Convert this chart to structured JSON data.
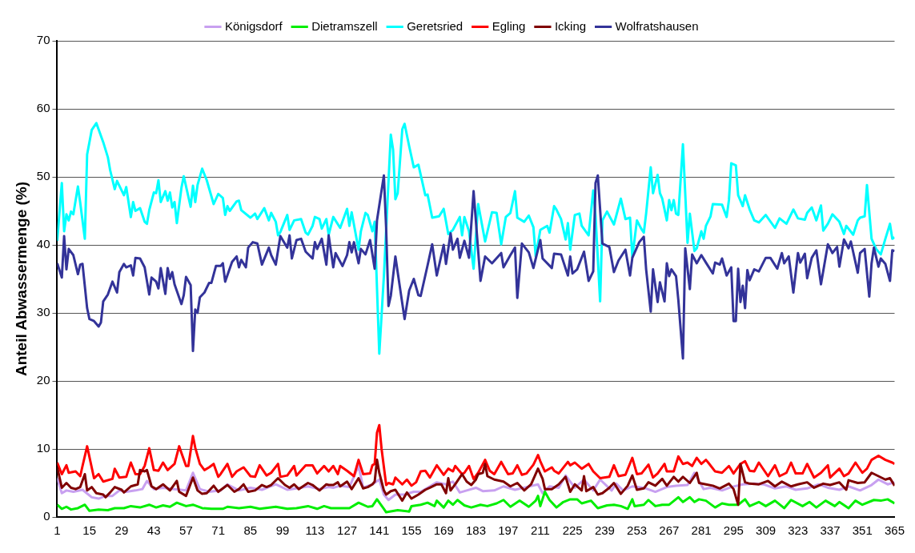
{
  "chart_data": {
    "type": "line",
    "ylabel": "Anteil Abwassermenge (%)",
    "xlim": [
      1,
      365
    ],
    "xticks": [
      1,
      15,
      29,
      43,
      57,
      71,
      85,
      99,
      113,
      127,
      141,
      155,
      169,
      183,
      197,
      211,
      225,
      239,
      253,
      267,
      281,
      295,
      309,
      323,
      337,
      351,
      365
    ],
    "ylim": [
      0,
      70
    ],
    "yticks": [
      0,
      10,
      20,
      30,
      40,
      50,
      60,
      70
    ],
    "grid": "y",
    "legend": "top",
    "marker": "none",
    "line_style": "solid",
    "series": [
      {
        "name": "Königsdorf",
        "color": "#c8a0f0",
        "x": [
          1,
          3,
          5,
          8,
          12,
          16,
          19,
          22,
          25,
          28,
          31,
          35,
          38,
          40,
          43,
          47,
          52,
          57,
          60,
          63,
          67,
          72,
          75,
          80,
          85,
          90,
          96,
          101,
          105,
          110,
          115,
          119,
          121,
          124,
          128,
          132,
          134,
          138,
          141,
          143,
          145,
          148,
          152,
          156,
          159,
          163,
          166,
          170,
          173,
          176,
          179,
          183,
          186,
          191,
          195,
          200,
          205,
          210,
          212,
          215,
          219,
          222,
          226,
          230,
          234,
          237,
          242,
          244,
          247,
          251,
          256,
          261,
          266,
          270,
          275,
          278,
          282,
          285,
          290,
          294,
          299,
          304,
          308,
          313,
          318,
          322,
          327,
          332,
          336,
          341,
          345,
          350,
          355,
          358,
          362,
          365
        ],
        "values": [
          5.7,
          3.5,
          3.9,
          3.7,
          4.0,
          2.9,
          2.7,
          3.1,
          3.1,
          3.9,
          3.7,
          3.9,
          4.1,
          5.3,
          4.1,
          4.3,
          4.1,
          3.9,
          6.5,
          4.1,
          3.7,
          3.9,
          4.8,
          3.9,
          4.3,
          4.0,
          4.8,
          4.0,
          4.2,
          4.5,
          4.1,
          4.4,
          4.3,
          4.6,
          4.4,
          7.5,
          4.3,
          4.8,
          5.5,
          3.3,
          2.5,
          3.3,
          3.3,
          3.7,
          3.7,
          4.5,
          5.1,
          4.8,
          5.2,
          3.6,
          3.9,
          4.3,
          3.8,
          3.9,
          4.5,
          4.0,
          4.4,
          4.8,
          3.5,
          4.5,
          4.3,
          6.1,
          4.3,
          5.5,
          3.9,
          5.5,
          3.9,
          4.9,
          3.9,
          4.5,
          4.3,
          3.7,
          4.4,
          4.6,
          4.7,
          6.5,
          4.1,
          4.3,
          3.9,
          4.4,
          4.8,
          4.9,
          4.8,
          4.2,
          4.5,
          4.0,
          4.2,
          4.8,
          4.3,
          4.0,
          4.5,
          3.9,
          4.7,
          5.5,
          4.8,
          5.1
        ]
      },
      {
        "name": "Dietramszell",
        "color": "#00ee00",
        "x": [
          1,
          3,
          5,
          7,
          10,
          13,
          15,
          19,
          23,
          26,
          30,
          33,
          37,
          41,
          44,
          47,
          50,
          53,
          57,
          60,
          64,
          68,
          73,
          75,
          80,
          85,
          89,
          96,
          101,
          105,
          110,
          114,
          117,
          120,
          124,
          128,
          132,
          136,
          138,
          140,
          143,
          144,
          149,
          154,
          155,
          159,
          162,
          165,
          166,
          169,
          171,
          173,
          175,
          178,
          181,
          185,
          188,
          192,
          195,
          198,
          202,
          206,
          209,
          210,
          211,
          213,
          215,
          218,
          221,
          224,
          227,
          229,
          233,
          236,
          240,
          243,
          246,
          249,
          251,
          252,
          256,
          258,
          261,
          264,
          267,
          271,
          273,
          276,
          278,
          280,
          283,
          287,
          290,
          293,
          297,
          300,
          302,
          306,
          309,
          313,
          317,
          320,
          325,
          328,
          331,
          335,
          339,
          341,
          345,
          348,
          351,
          356,
          359,
          362,
          365
        ],
        "values": [
          1.8,
          1.2,
          1.5,
          1.1,
          1.3,
          1.8,
          0.9,
          1.1,
          1.0,
          1.3,
          1.3,
          1.6,
          1.4,
          1.8,
          1.4,
          1.7,
          1.5,
          2.1,
          1.6,
          1.8,
          1.3,
          1.2,
          1.2,
          1.5,
          1.3,
          1.5,
          1.2,
          1.5,
          1.2,
          1.3,
          1.6,
          1.2,
          1.6,
          1.3,
          1.3,
          1.3,
          2.1,
          1.5,
          1.6,
          2.6,
          1.2,
          0.7,
          1.0,
          0.8,
          1.6,
          1.8,
          2.1,
          1.6,
          2.4,
          1.4,
          2.4,
          1.8,
          2.5,
          1.7,
          1.4,
          1.8,
          1.6,
          2.0,
          2.5,
          1.5,
          2.4,
          1.5,
          2.4,
          3.1,
          1.6,
          3.7,
          2.5,
          1.4,
          2.2,
          2.6,
          2.6,
          2.0,
          2.4,
          1.3,
          1.7,
          1.8,
          1.6,
          1.2,
          2.6,
          1.6,
          1.8,
          2.5,
          1.6,
          1.8,
          1.8,
          2.9,
          2.2,
          2.9,
          2.2,
          2.6,
          2.4,
          1.4,
          2.0,
          1.8,
          1.8,
          2.6,
          1.6,
          2.2,
          1.6,
          2.4,
          1.3,
          2.5,
          1.6,
          2.2,
          1.4,
          2.4,
          1.6,
          2.2,
          1.3,
          2.4,
          1.8,
          2.5,
          2.4,
          2.6,
          2.0
        ]
      },
      {
        "name": "Geretsried",
        "color": "#00ffff",
        "x": [
          1,
          3,
          4,
          5,
          6,
          7,
          8,
          10,
          11,
          13,
          14,
          16,
          18,
          21,
          23,
          24,
          26,
          27,
          30,
          31,
          33,
          34,
          35,
          37,
          39,
          40,
          41,
          43,
          44,
          45,
          46,
          48,
          49,
          50,
          51,
          52,
          53,
          55,
          56,
          59,
          60,
          61,
          62,
          64,
          66,
          69,
          71,
          73,
          74,
          75,
          76,
          79,
          80,
          81,
          85,
          87,
          88,
          91,
          93,
          94,
          96,
          97,
          98,
          101,
          102,
          104,
          107,
          109,
          110,
          112,
          113,
          115,
          116,
          118,
          119,
          121,
          124,
          127,
          128,
          129,
          132,
          133,
          135,
          136,
          138,
          139,
          141,
          143,
          146,
          147,
          148,
          149,
          151,
          152,
          154,
          156,
          158,
          161,
          162,
          164,
          167,
          169,
          171,
          173,
          176,
          177,
          178,
          180,
          182,
          184,
          187,
          190,
          192,
          194,
          196,
          198,
          200,
          201,
          204,
          206,
          208,
          209,
          211,
          214,
          215,
          217,
          218,
          220,
          222,
          223,
          224,
          226,
          228,
          229,
          232,
          234,
          235,
          237,
          238,
          240,
          243,
          246,
          248,
          250,
          251,
          253,
          255,
          256,
          257,
          259,
          260,
          262,
          263,
          264,
          266,
          267,
          268,
          269,
          270,
          271,
          273,
          275,
          276,
          278,
          279,
          281,
          282,
          283,
          285,
          286,
          290,
          292,
          293,
          294,
          296,
          297,
          299,
          300,
          302,
          304,
          306,
          309,
          313,
          315,
          318,
          321,
          323,
          326,
          327,
          329,
          331,
          333,
          334,
          336,
          338,
          341,
          343,
          344,
          347,
          349,
          350,
          352,
          353,
          355,
          357,
          359,
          361,
          363,
          364,
          365
        ],
        "values": [
          40.6,
          49.1,
          42.0,
          44.5,
          43.6,
          44.9,
          44.5,
          48.6,
          46.2,
          40.9,
          53.3,
          56.9,
          57.9,
          55.1,
          52.9,
          51,
          48.2,
          49.4,
          47.3,
          48.5,
          44.1,
          46.3,
          45.0,
          45.4,
          43.4,
          43.1,
          45.1,
          47.7,
          47.6,
          49.5,
          46.3,
          47.9,
          46.5,
          47.7,
          45.5,
          46.3,
          43.2,
          48.4,
          50.1,
          45.6,
          48.7,
          46.3,
          48.8,
          51.2,
          49.5,
          46,
          47.5,
          46.9,
          44.4,
          45.7,
          45,
          46.4,
          46.5,
          45.1,
          44.0,
          44.6,
          43.8,
          45.4,
          43.6,
          44.7,
          43.4,
          41.4,
          41.9,
          44.4,
          42.2,
          43.6,
          43.8,
          41.8,
          41.5,
          42.8,
          44.1,
          43.8,
          42.4,
          43.8,
          41.5,
          44.1,
          42.5,
          45.3,
          42.8,
          44.8,
          39.3,
          42,
          44.7,
          44.4,
          42,
          43.4,
          24.0,
          35.4,
          56.2,
          54,
          46.7,
          47.6,
          57,
          57.8,
          54.5,
          51.4,
          51.8,
          47.3,
          47.4,
          44,
          44.2,
          45.3,
          41.6,
          42.2,
          44.1,
          41.4,
          44.1,
          42,
          36.5,
          46,
          40.5,
          44.8,
          44.7,
          40.1,
          44.1,
          44.7,
          47.9,
          44,
          43.4,
          44.3,
          42.6,
          38.3,
          42.2,
          42.8,
          41.8,
          45.7,
          45.2,
          43.8,
          40.8,
          43.2,
          39.3,
          44.4,
          44.6,
          42.8,
          41.4,
          48.0,
          44.3,
          31.7,
          43.6,
          44.9,
          43,
          46.8,
          43.8,
          44,
          38.2,
          43.6,
          42.3,
          41.8,
          44.6,
          51.4,
          47.6,
          50.3,
          47.6,
          46.8,
          43.6,
          46.6,
          45.1,
          46.6,
          44.6,
          44.4,
          54.8,
          40.3,
          44.6,
          39.1,
          39.5,
          42,
          40.9,
          42.8,
          44.2,
          46,
          45.9,
          44.1,
          46.6,
          52,
          51.7,
          47.3,
          45.7,
          47.3,
          45.2,
          43.6,
          43.3,
          44.4,
          42.5,
          43.9,
          43.1,
          45.2,
          43.9,
          43.7,
          44.7,
          45.5,
          43.6,
          45.8,
          42.1,
          43.1,
          44.5,
          43.4,
          41.6,
          42.8,
          41.5,
          43.6,
          44.0,
          44.2,
          48.8,
          40.9,
          39.4,
          38.6,
          40.9,
          43.1,
          40.9,
          41.1
        ]
      },
      {
        "name": "Egling",
        "color": "#ff0000",
        "x": [
          1,
          3,
          5,
          6,
          9,
          11,
          12,
          14,
          17,
          19,
          21,
          25,
          26,
          28,
          31,
          33,
          35,
          37,
          39,
          41,
          43,
          45,
          47,
          49,
          52,
          54,
          55,
          57,
          58,
          60,
          61,
          63,
          65,
          67,
          69,
          71,
          72,
          75,
          77,
          79,
          82,
          85,
          87,
          89,
          92,
          94,
          97,
          98,
          101,
          104,
          105,
          109,
          112,
          114,
          117,
          119,
          121,
          123,
          124,
          127,
          130,
          132,
          134,
          137,
          138,
          139,
          140,
          141,
          142,
          144,
          145,
          147,
          148,
          151,
          153,
          155,
          157,
          159,
          161,
          163,
          166,
          169,
          171,
          173,
          174,
          177,
          178,
          180,
          182,
          184,
          187,
          189,
          191,
          194,
          197,
          199,
          201,
          203,
          205,
          208,
          210,
          211,
          213,
          216,
          217,
          219,
          223,
          224,
          226,
          229,
          232,
          234,
          237,
          241,
          243,
          245,
          248,
          251,
          253,
          255,
          258,
          260,
          262,
          265,
          266,
          269,
          271,
          273,
          275,
          277,
          279,
          281,
          283,
          284,
          287,
          290,
          293,
          295,
          298,
          300,
          302,
          304,
          306,
          310,
          313,
          315,
          318,
          320,
          322,
          325,
          327,
          330,
          333,
          336,
          337,
          341,
          343,
          345,
          348,
          351,
          353,
          355,
          358,
          361,
          364,
          365
        ],
        "values": [
          8.0,
          6.3,
          7.6,
          6.5,
          6.7,
          6.0,
          7.5,
          10.4,
          5.7,
          6.3,
          5.2,
          5.6,
          7.1,
          5.8,
          5.9,
          8.0,
          6.3,
          6.3,
          7.5,
          10.1,
          6.9,
          6.8,
          8.0,
          6.9,
          7.8,
          10.4,
          9.4,
          7.5,
          7.5,
          11.9,
          10.2,
          7.8,
          6.9,
          7.3,
          7.8,
          5.9,
          6.3,
          7.8,
          5.9,
          6.7,
          7.3,
          6.0,
          5.9,
          7.6,
          6.1,
          6.5,
          7.8,
          5.9,
          6.1,
          7.5,
          6.1,
          7.6,
          7.6,
          6.4,
          7.5,
          6.7,
          7.5,
          6.3,
          7.5,
          6.8,
          6.0,
          8.4,
          6.3,
          6.4,
          7.6,
          7.8,
          12.4,
          13.5,
          10.0,
          4.7,
          5.0,
          4.8,
          5.8,
          4.8,
          5.5,
          4.6,
          5.1,
          6.7,
          6.8,
          5.8,
          7.6,
          6.2,
          7.1,
          6.7,
          7.5,
          6.3,
          6.5,
          7.5,
          5.6,
          6.5,
          8.4,
          6.8,
          6.3,
          8.1,
          6.3,
          6.4,
          7.6,
          6.2,
          6.4,
          7.7,
          9.1,
          8.2,
          6.7,
          7.3,
          6.8,
          6.4,
          8.1,
          7.6,
          8.0,
          7.1,
          7.8,
          6.7,
          5.7,
          5.9,
          7.6,
          6.0,
          6.2,
          8.7,
          6.3,
          6.4,
          7.7,
          5.8,
          6.4,
          7.8,
          6.7,
          6.7,
          8.9,
          7.8,
          8.0,
          7.5,
          8.7,
          7.8,
          8.4,
          8.0,
          6.7,
          6.5,
          7.5,
          6.4,
          7.8,
          8.2,
          6.8,
          6.7,
          8.0,
          6.0,
          7.6,
          6.0,
          6.5,
          8.0,
          6.4,
          6.4,
          7.8,
          5.8,
          6.5,
          7.6,
          5.8,
          7.1,
          6.0,
          6.4,
          8.0,
          6.5,
          7.1,
          8.4,
          9.0,
          8.4,
          8.0,
          7.8
        ]
      },
      {
        "name": "Icking",
        "color": "#800000",
        "x": [
          1,
          3,
          5,
          7,
          9,
          11,
          13,
          14,
          16,
          18,
          21,
          22,
          24,
          26,
          29,
          30,
          33,
          36,
          37,
          39,
          40,
          42,
          44,
          47,
          50,
          53,
          54,
          57,
          60,
          62,
          64,
          66,
          69,
          71,
          75,
          78,
          80,
          82,
          84,
          87,
          90,
          92,
          94,
          97,
          100,
          102,
          104,
          106,
          110,
          112,
          115,
          118,
          119,
          121,
          123,
          124,
          127,
          129,
          132,
          134,
          136,
          138,
          139,
          140,
          141,
          143,
          144,
          146,
          148,
          151,
          153,
          155,
          158,
          161,
          163,
          166,
          168,
          170,
          171,
          172,
          174,
          177,
          179,
          181,
          183,
          184,
          186,
          187,
          188,
          191,
          195,
          198,
          201,
          204,
          207,
          210,
          212,
          213,
          216,
          219,
          222,
          224,
          226,
          229,
          230,
          231,
          234,
          236,
          238,
          241,
          243,
          246,
          249,
          251,
          253,
          256,
          258,
          261,
          264,
          266,
          269,
          271,
          273,
          276,
          279,
          280,
          283,
          286,
          289,
          293,
          295,
          297,
          298,
          300,
          302,
          306,
          310,
          313,
          316,
          320,
          323,
          327,
          330,
          334,
          337,
          341,
          344,
          345,
          349,
          352,
          355,
          358,
          361,
          363,
          365
        ],
        "values": [
          7.3,
          4.3,
          5.0,
          4.3,
          4.1,
          4.4,
          6.3,
          3.9,
          4.4,
          3.5,
          3.3,
          2.9,
          3.6,
          4.4,
          4.0,
          3.6,
          4.5,
          4.8,
          6.9,
          6.7,
          6.9,
          4.5,
          4.1,
          4.8,
          3.9,
          5.3,
          3.7,
          3.1,
          5.8,
          3.9,
          3.4,
          3.5,
          4.6,
          3.7,
          4.7,
          3.7,
          4.1,
          4.8,
          3.7,
          3.9,
          4.7,
          4.4,
          4.7,
          5.7,
          4.7,
          4.3,
          4.8,
          4.1,
          5.0,
          4.7,
          3.9,
          4.8,
          4.7,
          4.7,
          5.1,
          4.5,
          5.2,
          4.1,
          5.7,
          4.2,
          4.4,
          4.8,
          5.2,
          8.4,
          6.5,
          3.9,
          3.3,
          3.8,
          4.0,
          2.4,
          3.6,
          2.7,
          3.3,
          4.0,
          4.3,
          4.8,
          4.8,
          3.5,
          5.7,
          3.9,
          4.8,
          6.3,
          5.2,
          4.7,
          5.5,
          6.3,
          6.5,
          7.8,
          6.0,
          5.5,
          5.2,
          4.5,
          5.0,
          3.9,
          4.8,
          7.1,
          5.6,
          4.1,
          4.1,
          4.8,
          5.9,
          3.7,
          4.8,
          3.9,
          6.0,
          3.8,
          4.4,
          3.3,
          3.5,
          4.3,
          5.0,
          3.4,
          4.6,
          6.1,
          4.0,
          4.2,
          5.1,
          4.6,
          5.6,
          4.6,
          5.9,
          5.2,
          5.9,
          5.0,
          6.5,
          5.0,
          4.8,
          4.6,
          4.2,
          4.9,
          4.1,
          1.8,
          7.8,
          5.1,
          4.9,
          4.8,
          5.3,
          4.5,
          5.2,
          4.5,
          4.8,
          5.1,
          4.3,
          4.9,
          4.7,
          5.1,
          4.0,
          5.4,
          5.0,
          5.1,
          6.5,
          6.0,
          5.5,
          5.7,
          4.6
        ]
      },
      {
        "name": "Wolfratshausen",
        "color": "#333399",
        "x": [
          1,
          3,
          4,
          5,
          6,
          8,
          10,
          11,
          12,
          14,
          15,
          17,
          19,
          20,
          21,
          23,
          25,
          27,
          28,
          30,
          31,
          33,
          34,
          35,
          37,
          39,
          41,
          42,
          44,
          45,
          46,
          48,
          49,
          50,
          51,
          52,
          55,
          56,
          57,
          59,
          60,
          61,
          62,
          63,
          65,
          67,
          68,
          70,
          72,
          73,
          74,
          77,
          79,
          80,
          81,
          83,
          84,
          86,
          88,
          90,
          93,
          94,
          96,
          98,
          101,
          102,
          103,
          105,
          107,
          109,
          112,
          113,
          114,
          116,
          118,
          119,
          121,
          122,
          125,
          127,
          128,
          129,
          130,
          132,
          133,
          135,
          137,
          139,
          140,
          143,
          144,
          145,
          146,
          148,
          152,
          154,
          156,
          158,
          159,
          162,
          164,
          166,
          169,
          170,
          172,
          173,
          175,
          176,
          178,
          180,
          182,
          185,
          187,
          190,
          194,
          195,
          198,
          200,
          201,
          203,
          206,
          208,
          211,
          212,
          216,
          217,
          220,
          223,
          224,
          225,
          227,
          230,
          232,
          234,
          235,
          236,
          238,
          241,
          243,
          245,
          248,
          250,
          251,
          254,
          256,
          257,
          259,
          260,
          262,
          263,
          265,
          266,
          267,
          268,
          270,
          271,
          273,
          274,
          276,
          277,
          279,
          281,
          283,
          286,
          287,
          289,
          290,
          292,
          294,
          295,
          296,
          297,
          298,
          299,
          300,
          301,
          302,
          304,
          306,
          309,
          311,
          314,
          316,
          317,
          319,
          321,
          323,
          324,
          326,
          327,
          329,
          331,
          333,
          336,
          338,
          340,
          341,
          343,
          345,
          346,
          349,
          350,
          352,
          354,
          355,
          356,
          358,
          359,
          361,
          363,
          364,
          365
        ],
        "values": [
          37.3,
          35.2,
          41.3,
          36.4,
          39.4,
          38.5,
          35.7,
          37.1,
          37.2,
          30.7,
          29.1,
          28.8,
          28.0,
          28.6,
          31.7,
          32.7,
          34.6,
          33.0,
          36.0,
          37.2,
          36.7,
          37.0,
          35.5,
          38.1,
          38.0,
          36.7,
          32.7,
          35.2,
          34.6,
          33.6,
          36.6,
          32.8,
          36.6,
          35,
          36.0,
          34.2,
          31.3,
          32.6,
          35.3,
          34.1,
          24.4,
          30.5,
          30.0,
          32.3,
          33.0,
          34.4,
          34.4,
          36.9,
          36.9,
          37.3,
          34.6,
          37.5,
          38.3,
          36.7,
          37.8,
          36.7,
          39.6,
          40.4,
          40.2,
          37.1,
          39.6,
          38.5,
          37.1,
          41.3,
          39.6,
          41.4,
          38.0,
          40.7,
          40.9,
          39.0,
          38.0,
          40.4,
          39.4,
          40.9,
          37.1,
          41.4,
          36.7,
          38.8,
          36.9,
          38.5,
          40.4,
          38.9,
          40.4,
          37.3,
          39.4,
          38.6,
          40.7,
          36.5,
          43.6,
          50.2,
          42.3,
          31,
          32.5,
          38.3,
          29.1,
          33.3,
          35,
          32.6,
          32.5,
          37,
          40.1,
          35.5,
          40.0,
          37.2,
          41.7,
          39.3,
          40.9,
          38.1,
          40.6,
          38.1,
          47.9,
          34.7,
          38.3,
          37.3,
          38.8,
          36.7,
          38.5,
          39.6,
          32.2,
          40.2,
          38.9,
          36.6,
          40.7,
          38.0,
          36.6,
          38.7,
          38.6,
          35.5,
          38.3,
          35.8,
          36.4,
          39.0,
          34.7,
          36.1,
          49.1,
          50.2,
          40.2,
          39.7,
          36,
          37.7,
          39.3,
          35.5,
          38.1,
          40.4,
          41.2,
          36.4,
          30.2,
          36.4,
          31.6,
          34.5,
          31.7,
          37.3,
          35.4,
          36.4,
          35.4,
          31.9,
          23.3,
          39.5,
          33.5,
          38.6,
          37.3,
          38.5,
          37.4,
          35.8,
          37.4,
          37.1,
          38,
          35.5,
          36.7,
          28.8,
          28.8,
          36.5,
          31.6,
          34,
          30.7,
          36.3,
          34.8,
          36.4,
          36.1,
          38.1,
          38.1,
          36.5,
          38.8,
          37.3,
          38.3,
          33.0,
          38.8,
          37.4,
          38.7,
          35.1,
          38.1,
          39.2,
          34.2,
          40.1,
          38.8,
          39.7,
          36.8,
          40.8,
          39.5,
          40.5,
          35.9,
          38.8,
          39.4,
          32.4,
          37.3,
          39.6,
          36.8,
          38,
          37.2,
          34.7,
          39.2,
          39.1
        ]
      }
    ]
  }
}
